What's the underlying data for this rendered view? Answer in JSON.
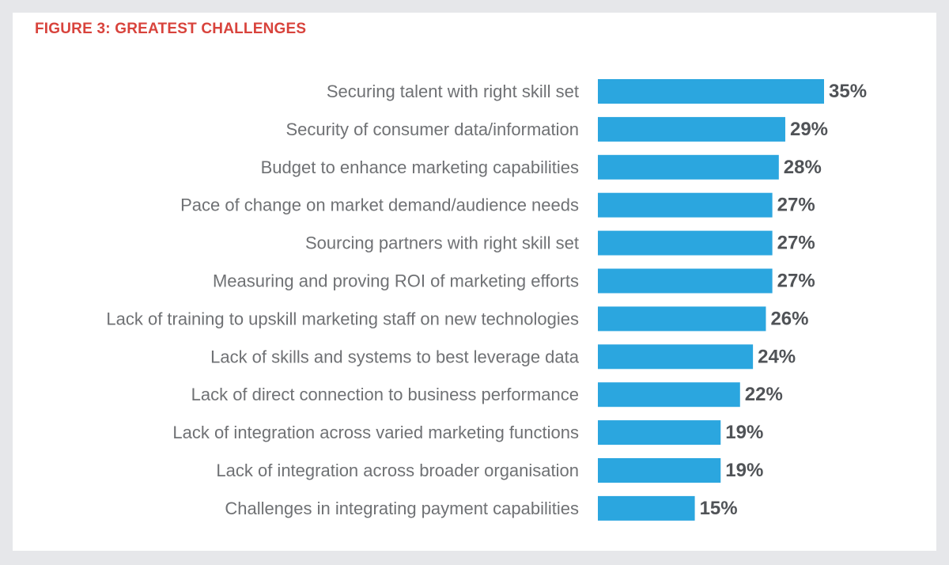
{
  "figure_title": "FIGURE 3: GREATEST CHALLENGES",
  "colors": {
    "bar": "#2ba6df",
    "title": "#d8433c",
    "category_text": "#6f7174",
    "value_text": "#505357",
    "background": "#e6e7ea",
    "card": "#ffffff"
  },
  "chart_data": {
    "type": "bar",
    "orientation": "horizontal",
    "title": "FIGURE 3: GREATEST CHALLENGES",
    "categories": [
      "Securing talent with right skill set",
      "Security of consumer data/information",
      "Budget to enhance marketing capabilities",
      "Pace of change on market demand/audience needs",
      "Sourcing partners with right skill set",
      "Measuring and proving ROI of marketing efforts",
      "Lack of training to upskill marketing staff on new technologies",
      "Lack of skills and systems to best leverage data",
      "Lack of direct connection to business performance",
      "Lack of integration across varied marketing functions",
      "Lack of integration across broader organisation",
      "Challenges in integrating payment capabilities"
    ],
    "values": [
      35,
      29,
      28,
      27,
      27,
      27,
      26,
      24,
      22,
      19,
      19,
      15
    ],
    "value_labels": [
      "35%",
      "29%",
      "28%",
      "27%",
      "27%",
      "27%",
      "26%",
      "24%",
      "22%",
      "19%",
      "19%",
      "15%"
    ],
    "xlabel": "",
    "ylabel": "",
    "xlim": [
      0,
      35
    ],
    "grid": false,
    "legend": "none"
  }
}
